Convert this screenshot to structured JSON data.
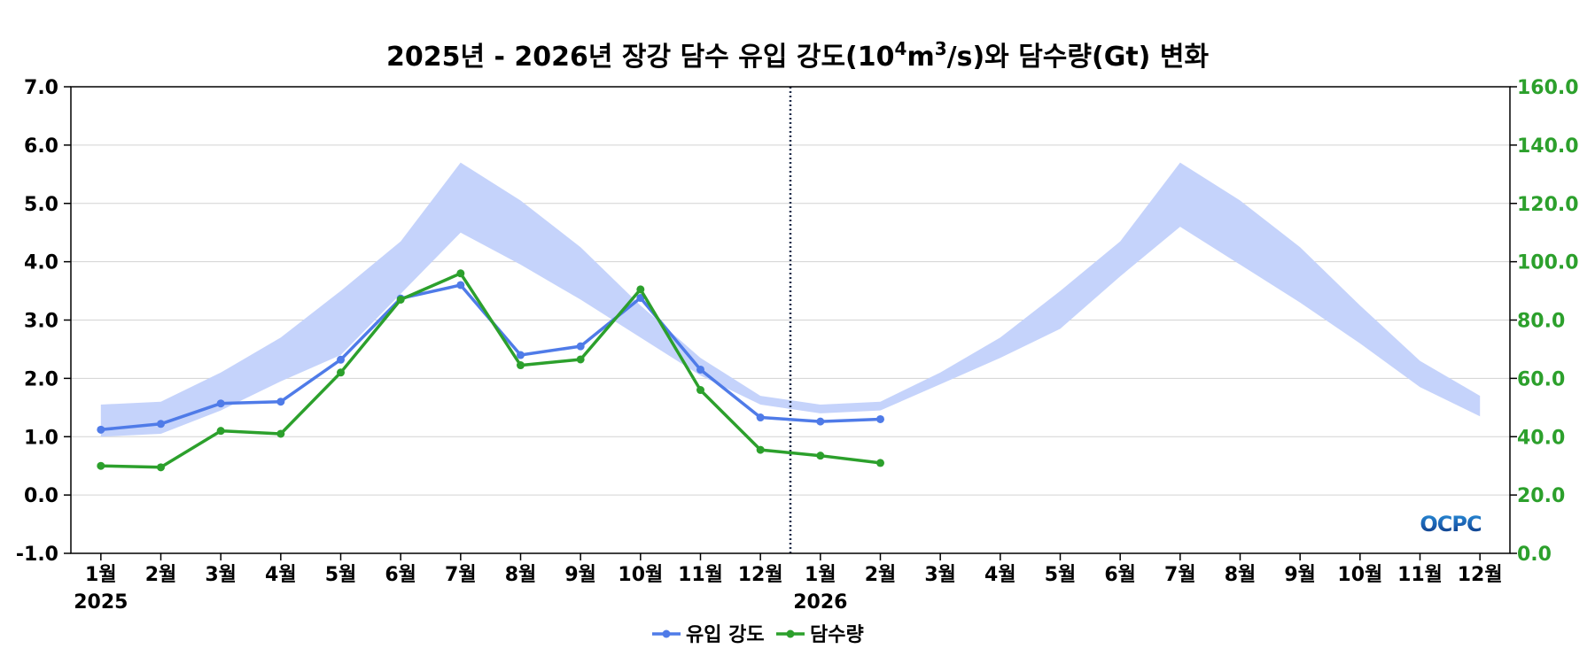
{
  "chart_data": {
    "type": "line",
    "title": {
      "prefix": "2025년 - 2026년 장강 담수 유입 강도(10",
      "sup1": "4",
      "mid": "m",
      "sup2": "3",
      "suffix": "/s)와 담수량(Gt) 변화"
    },
    "x_labels": [
      "1월",
      "2월",
      "3월",
      "4월",
      "5월",
      "6월",
      "7월",
      "8월",
      "9월",
      "10월",
      "11월",
      "12월",
      "1월",
      "2월",
      "3월",
      "4월",
      "5월",
      "6월",
      "7월",
      "8월",
      "9월",
      "10월",
      "11월",
      "12월"
    ],
    "year_labels": [
      {
        "index": 0,
        "label": "2025"
      },
      {
        "index": 12,
        "label": "2026"
      }
    ],
    "divider_between": [
      11,
      12
    ],
    "y_left": {
      "min": -1.0,
      "max": 7.0,
      "ticks": [
        "-1.0",
        "0.0",
        "1.0",
        "2.0",
        "3.0",
        "4.0",
        "5.0",
        "6.0",
        "7.0"
      ]
    },
    "y_right": {
      "min": 0,
      "max": 160,
      "ticks": [
        "0.0",
        "20.0",
        "40.0",
        "60.0",
        "80.0",
        "100.0",
        "120.0",
        "140.0",
        "160.0"
      ]
    },
    "grid": "horizontal",
    "band": {
      "axis": "left",
      "color": "#c5d3fb",
      "lower": [
        1.0,
        1.05,
        1.45,
        1.95,
        2.4,
        3.45,
        4.5,
        3.95,
        3.35,
        2.7,
        2.05,
        1.55,
        1.4,
        1.45,
        1.9,
        2.35,
        2.85,
        3.75,
        4.6,
        3.95,
        3.3,
        2.6,
        1.85,
        1.35
      ],
      "upper": [
        1.55,
        1.6,
        2.1,
        2.7,
        3.5,
        4.35,
        5.7,
        5.05,
        4.25,
        3.25,
        2.35,
        1.7,
        1.55,
        1.6,
        2.1,
        2.7,
        3.5,
        4.35,
        5.7,
        5.05,
        4.25,
        3.25,
        2.3,
        1.7
      ]
    },
    "series": [
      {
        "name": "유입 강도",
        "axis": "left",
        "color": "#4f7be8",
        "values": [
          1.12,
          1.22,
          1.57,
          1.6,
          2.32,
          3.37,
          3.6,
          2.4,
          2.55,
          3.38,
          2.15,
          1.33,
          1.26,
          1.3
        ]
      },
      {
        "name": "담수량",
        "axis": "right",
        "color": "#2ca02c",
        "values": [
          30,
          29.5,
          42,
          41,
          62,
          87,
          96,
          64.5,
          66.5,
          90.5,
          56,
          35.5,
          33.5,
          31
        ]
      }
    ],
    "legend_position": "bottom-center",
    "right_axis_color": "#2ca02c"
  },
  "logo": {
    "text": "OCPC"
  }
}
